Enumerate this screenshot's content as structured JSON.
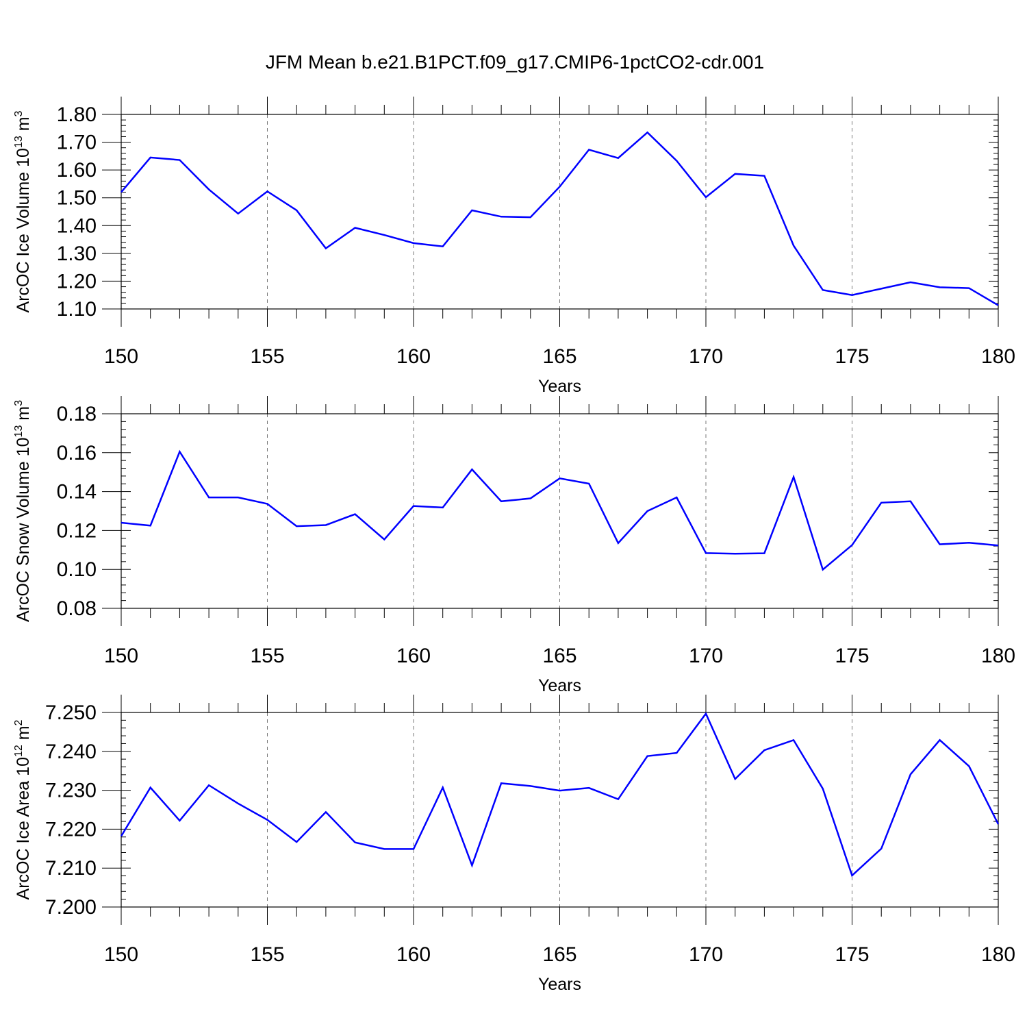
{
  "figure_title": "JFM Mean b.e21.B1PCT.f09_g17.CMIP6-1pctCO2-cdr.001",
  "line_color": "#0000ff",
  "chart_data": [
    {
      "type": "line",
      "title": "",
      "xlabel": "Years",
      "ylabel": "ArcOC Ice Volume 10",
      "ylabel_sup": "13",
      "ylabel_unit": "m",
      "ylabel_unit_sup": "3",
      "xlim": [
        150,
        180
      ],
      "ylim": [
        1.1,
        1.8
      ],
      "y_major_ticks": [
        1.1,
        1.2,
        1.3,
        1.4,
        1.5,
        1.6,
        1.7,
        1.8
      ],
      "y_tick_labels": [
        "1.10",
        "1.20",
        "1.30",
        "1.40",
        "1.50",
        "1.60",
        "1.70",
        "1.80"
      ],
      "y_minor_step": 0.02,
      "x_major_ticks": [
        150,
        155,
        160,
        165,
        170,
        175,
        180
      ],
      "x_tick_labels": [
        "150",
        "155",
        "160",
        "165",
        "170",
        "175",
        "180"
      ],
      "grid": "vertical dashed at major x ticks",
      "x": [
        150,
        151,
        152,
        153,
        154,
        155,
        156,
        157,
        158,
        159,
        160,
        161,
        162,
        163,
        164,
        165,
        166,
        167,
        168,
        169,
        170,
        171,
        172,
        173,
        174,
        175,
        176,
        177,
        178,
        179,
        180
      ],
      "series": [
        {
          "name": "ArcOC Ice Volume",
          "values": [
            1.52,
            1.645,
            1.636,
            1.53,
            1.443,
            1.523,
            1.455,
            1.318,
            1.392,
            1.366,
            1.337,
            1.325,
            1.455,
            1.432,
            1.43,
            1.54,
            1.673,
            1.643,
            1.735,
            1.633,
            1.502,
            1.586,
            1.579,
            1.328,
            1.168,
            1.15,
            1.173,
            1.196,
            1.178,
            1.175,
            1.113
          ]
        }
      ]
    },
    {
      "type": "line",
      "title": "",
      "xlabel": "Years",
      "ylabel": "ArcOC Snow Volume 10",
      "ylabel_sup": "13",
      "ylabel_unit": "m",
      "ylabel_unit_sup": "3",
      "xlim": [
        150,
        180
      ],
      "ylim": [
        0.08,
        0.18
      ],
      "y_major_ticks": [
        0.08,
        0.1,
        0.12,
        0.14,
        0.16,
        0.18
      ],
      "y_tick_labels": [
        "0.08",
        "0.10",
        "0.12",
        "0.14",
        "0.16",
        "0.18"
      ],
      "y_minor_step": 0.004,
      "x_major_ticks": [
        150,
        155,
        160,
        165,
        170,
        175,
        180
      ],
      "x_tick_labels": [
        "150",
        "155",
        "160",
        "165",
        "170",
        "175",
        "180"
      ],
      "grid": "vertical dashed at major x ticks",
      "x": [
        150,
        151,
        152,
        153,
        154,
        155,
        156,
        157,
        158,
        159,
        160,
        161,
        162,
        163,
        164,
        165,
        166,
        167,
        168,
        169,
        170,
        171,
        172,
        173,
        174,
        175,
        176,
        177,
        178,
        179,
        180
      ],
      "series": [
        {
          "name": "ArcOC Snow Volume",
          "values": [
            0.124,
            0.1225,
            0.1605,
            0.137,
            0.137,
            0.1337,
            0.1222,
            0.1228,
            0.1284,
            0.1154,
            0.1326,
            0.1318,
            0.1514,
            0.135,
            0.1365,
            0.1468,
            0.1441,
            0.1135,
            0.13,
            0.137,
            0.1084,
            0.1081,
            0.1083,
            0.1475,
            0.0999,
            0.1125,
            0.1343,
            0.135,
            0.1129,
            0.1137,
            0.1123
          ]
        }
      ]
    },
    {
      "type": "line",
      "title": "",
      "xlabel": "Years",
      "ylabel": "ArcOC Ice Area 10",
      "ylabel_sup": "12",
      "ylabel_unit": "m",
      "ylabel_unit_sup": "2",
      "xlim": [
        150,
        180
      ],
      "ylim": [
        7.2,
        7.25
      ],
      "y_major_ticks": [
        7.2,
        7.21,
        7.22,
        7.23,
        7.24,
        7.25
      ],
      "y_tick_labels": [
        "7.200",
        "7.210",
        "7.220",
        "7.230",
        "7.240",
        "7.250"
      ],
      "y_minor_step": 0.002,
      "x_major_ticks": [
        150,
        155,
        160,
        165,
        170,
        175,
        180
      ],
      "x_tick_labels": [
        "150",
        "155",
        "160",
        "165",
        "170",
        "175",
        "180"
      ],
      "grid": "vertical dashed at major x ticks",
      "x": [
        150,
        151,
        152,
        153,
        154,
        155,
        156,
        157,
        158,
        159,
        160,
        161,
        162,
        163,
        164,
        165,
        166,
        167,
        168,
        169,
        170,
        171,
        172,
        173,
        174,
        175,
        176,
        177,
        178,
        179,
        180
      ],
      "series": [
        {
          "name": "ArcOC Ice Area",
          "values": [
            7.2182,
            7.2307,
            7.2222,
            7.2313,
            7.2266,
            7.2224,
            7.2167,
            7.2244,
            7.2166,
            7.2149,
            7.2149,
            7.2307,
            7.2107,
            7.2318,
            7.2311,
            7.2299,
            7.2306,
            7.2277,
            7.2388,
            7.2396,
            7.2497,
            7.2329,
            7.2403,
            7.2429,
            7.2304,
            7.2081,
            7.215,
            7.2341,
            7.2429,
            7.2362,
            7.2213
          ]
        }
      ]
    }
  ]
}
